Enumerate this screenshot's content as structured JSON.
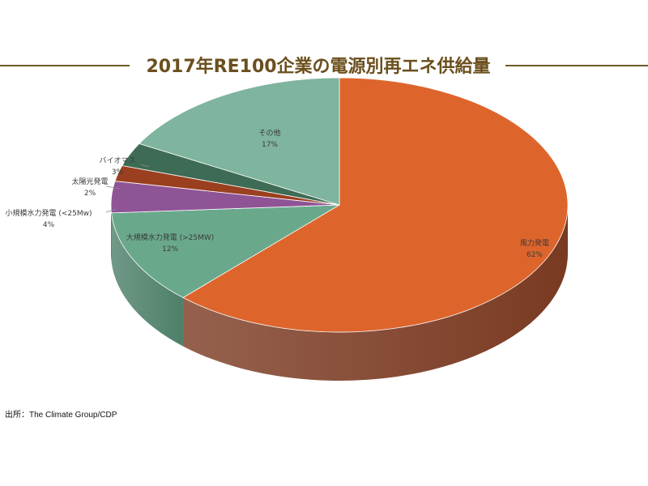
{
  "title": "2017年RE100企業の電源別再エネ供給量",
  "source": "出所：The Climate Group/CDP",
  "chart_data": {
    "type": "pie",
    "title": "2017年RE100企業の電源別再エネ供給量",
    "three_d": true,
    "slices": [
      {
        "label": "風力発電",
        "value": 62,
        "value_label": "62%",
        "color": "#dd652c",
        "side_color": "#7a3a22"
      },
      {
        "label": "大規模水力発電 (>25MW)",
        "value": 12,
        "value_label": "12%",
        "color": "#6aa88c",
        "side_color": "#4d7f69"
      },
      {
        "label": "小規模水力発電 (<25Mw)",
        "value": 4,
        "value_label": "4%",
        "color": "#8f5496",
        "side_color": "#5e3764"
      },
      {
        "label": "太陽光発電",
        "value": 2,
        "value_label": "2%",
        "color": "#9a3f1f",
        "side_color": "#5f2712"
      },
      {
        "label": "バイオマス",
        "value": 3,
        "value_label": "3%",
        "color": "#3e6b55",
        "side_color": "#274637"
      },
      {
        "label": "その他",
        "value": 17,
        "value_label": "17%",
        "color": "#7fb49f",
        "side_color": "#5b8b78"
      }
    ]
  }
}
